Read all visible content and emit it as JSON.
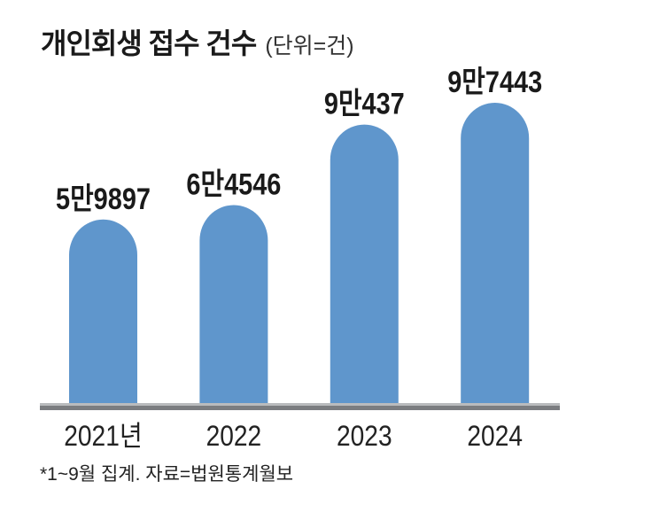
{
  "colors": {
    "bar": "#5f96cc",
    "baseline_dark": "#7b7d80",
    "baseline_light": "#b9bbbd",
    "text": "#1a1a1a"
  },
  "chart_data": {
    "type": "bar",
    "title": "개인회생 접수 건수",
    "unit_label": "(단위=건)",
    "categories": [
      "2021년",
      "2022",
      "2023",
      "2024"
    ],
    "values": [
      59897,
      64546,
      90437,
      97443
    ],
    "data_labels": [
      "5만9897",
      "6만4546",
      "9만437",
      "9만7443"
    ],
    "ylim": [
      0,
      100000
    ],
    "grid": false,
    "footnote": "*1~9월 집계. 자료=법원통계월보"
  }
}
